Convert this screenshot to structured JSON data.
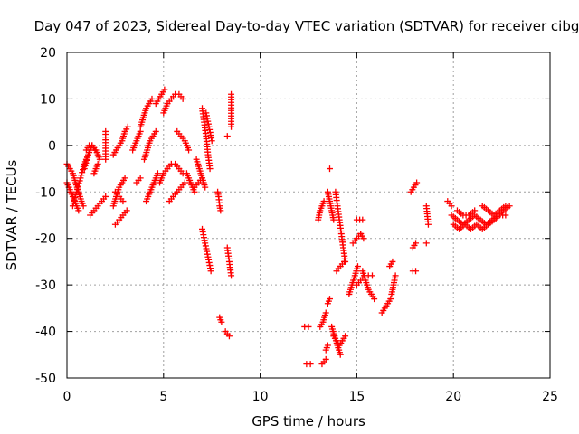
{
  "chart_data": {
    "type": "scatter",
    "title": "Day 047 of 2023, Sidereal Day-to-day VTEC variation (SDTVAR) for receiver cibg",
    "xlabel": "GPS time / hours",
    "ylabel": "SDTVAR / TECUs",
    "xlim": [
      0,
      25
    ],
    "ylim": [
      -50,
      20
    ],
    "xticks": [
      0,
      5,
      10,
      15,
      20,
      25
    ],
    "yticks": [
      -50,
      -40,
      -30,
      -20,
      -10,
      0,
      10,
      20
    ],
    "grid": true,
    "marker": "plus",
    "color": "#ff0000",
    "segments": [
      {
        "x": [
          0.0,
          0.15,
          0.3,
          0.45,
          0.6,
          0.75,
          0.85
        ],
        "y": [
          -4,
          -5,
          -6,
          -8,
          -10,
          -12,
          -13
        ]
      },
      {
        "x": [
          0.0,
          0.1,
          0.2,
          0.3,
          0.4,
          0.5,
          0.6
        ],
        "y": [
          -8,
          -9,
          -10,
          -11,
          -12,
          -13,
          -14
        ]
      },
      {
        "x": [
          0.3,
          0.5,
          0.7,
          0.9,
          1.1
        ],
        "y": [
          -13,
          -10,
          -7,
          -4,
          -2
        ]
      },
      {
        "x": [
          0.9,
          1.1,
          1.3,
          1.5,
          1.7
        ],
        "y": [
          -5,
          -2,
          0,
          -1,
          -3
        ]
      },
      {
        "x": [
          1.0,
          1.15,
          1.3,
          1.45
        ],
        "y": [
          -1,
          0,
          0,
          -1
        ]
      },
      {
        "x": [
          1.2,
          1.4,
          1.6,
          1.8,
          2.0
        ],
        "y": [
          -15,
          -14,
          -13,
          -12,
          -11
        ]
      },
      {
        "x": [
          1.4,
          1.6
        ],
        "y": [
          -6,
          -4
        ]
      },
      {
        "x": [
          2.0,
          2.0
        ],
        "y": [
          3,
          -3
        ]
      },
      {
        "x": [
          2.4,
          2.55,
          2.7,
          2.85,
          3.0,
          3.15
        ],
        "y": [
          -2,
          -1,
          0,
          1,
          3,
          4
        ]
      },
      {
        "x": [
          2.4,
          2.55,
          2.7,
          2.85,
          3.0
        ],
        "y": [
          -13,
          -11,
          -9,
          -8,
          -7
        ]
      },
      {
        "x": [
          2.5,
          2.7,
          2.9,
          3.1
        ],
        "y": [
          -17,
          -16,
          -15,
          -14
        ]
      },
      {
        "x": [
          2.5,
          2.7,
          2.9
        ],
        "y": [
          -10,
          -11,
          -12
        ]
      },
      {
        "x": [
          3.4,
          3.6,
          3.8
        ],
        "y": [
          -1,
          1,
          3
        ]
      },
      {
        "x": [
          3.6,
          3.8
        ],
        "y": [
          -8,
          -7
        ]
      },
      {
        "x": [
          3.8,
          3.95,
          4.1,
          4.25,
          4.4
        ],
        "y": [
          4,
          6,
          8,
          9,
          10
        ]
      },
      {
        "x": [
          4.0,
          4.15,
          4.3,
          4.45,
          4.6
        ],
        "y": [
          -3,
          -1,
          1,
          2,
          3
        ]
      },
      {
        "x": [
          4.1,
          4.3,
          4.5,
          4.7
        ],
        "y": [
          -12,
          -10,
          -8,
          -6
        ]
      },
      {
        "x": [
          4.6,
          4.75,
          4.9,
          5.05
        ],
        "y": [
          9,
          10,
          11,
          12
        ]
      },
      {
        "x": [
          4.8,
          5.0,
          5.2,
          5.4,
          5.6,
          5.8,
          6.0
        ],
        "y": [
          -8,
          -6,
          -5,
          -4,
          -4,
          -5,
          -6
        ]
      },
      {
        "x": [
          5.0,
          5.2,
          5.4,
          5.6,
          5.8,
          6.0
        ],
        "y": [
          7,
          9,
          10,
          11,
          11,
          10
        ]
      },
      {
        "x": [
          5.3,
          5.5,
          5.7,
          5.9,
          6.1
        ],
        "y": [
          -12,
          -11,
          -10,
          -9,
          -8
        ]
      },
      {
        "x": [
          5.7,
          5.9,
          6.1,
          6.3
        ],
        "y": [
          3,
          2,
          1,
          -1
        ]
      },
      {
        "x": [
          6.2,
          6.4,
          6.6
        ],
        "y": [
          -6,
          -8,
          -10
        ]
      },
      {
        "x": [
          6.6,
          6.8,
          7.0
        ],
        "y": [
          -9,
          -8,
          -7
        ]
      },
      {
        "x": [
          6.7,
          6.85,
          7.0,
          7.15
        ],
        "y": [
          -3,
          -5,
          -7,
          -9
        ]
      },
      {
        "x": [
          7.0,
          7.1,
          7.2,
          7.3,
          7.4
        ],
        "y": [
          8,
          5,
          2,
          -2,
          -5
        ]
      },
      {
        "x": [
          7.2,
          7.35,
          7.5
        ],
        "y": [
          7,
          4,
          1
        ]
      },
      {
        "x": [
          7.0,
          7.15,
          7.3,
          7.45
        ],
        "y": [
          -18,
          -21,
          -24,
          -27
        ]
      },
      {
        "x": [
          7.8,
          7.85,
          7.9,
          7.95
        ],
        "y": [
          -10,
          -11,
          -13,
          -14
        ]
      },
      {
        "x": [
          7.9,
          8.0
        ],
        "y": [
          -37,
          -38
        ]
      },
      {
        "x": [
          8.2,
          8.4
        ],
        "y": [
          -40,
          -41
        ]
      },
      {
        "x": [
          8.5,
          8.5
        ],
        "y": [
          11,
          4
        ]
      },
      {
        "x": [
          8.3,
          8.5
        ],
        "y": [
          -22,
          -28
        ]
      },
      {
        "x": [
          8.3
        ],
        "y": [
          2
        ]
      },
      {
        "x": [
          12.4,
          12.6
        ],
        "y": [
          -47,
          -47
        ]
      },
      {
        "x": [
          12.3,
          12.5
        ],
        "y": [
          -39,
          -39
        ]
      },
      {
        "x": [
          13.0,
          13.1,
          13.2,
          13.3
        ],
        "y": [
          -16,
          -14,
          -13,
          -12
        ]
      },
      {
        "x": [
          13.1,
          13.25,
          13.4
        ],
        "y": [
          -39,
          -38,
          -36
        ]
      },
      {
        "x": [
          13.2,
          13.4
        ],
        "y": [
          -47,
          -46
        ]
      },
      {
        "x": [
          13.4,
          13.5
        ],
        "y": [
          -44,
          -43
        ]
      },
      {
        "x": [
          13.5,
          13.6
        ],
        "y": [
          -34,
          -33
        ]
      },
      {
        "x": [
          13.6
        ],
        "y": [
          -5
        ]
      },
      {
        "x": [
          13.5,
          13.6,
          13.7,
          13.8
        ],
        "y": [
          -10,
          -12,
          -14,
          -16
        ]
      },
      {
        "x": [
          13.7,
          13.85,
          14.0,
          14.15
        ],
        "y": [
          -39,
          -41,
          -43,
          -45
        ]
      },
      {
        "x": [
          13.8,
          13.95,
          14.1,
          14.25,
          14.4
        ],
        "y": [
          -41,
          -42,
          -43,
          -42,
          -41
        ]
      },
      {
        "x": [
          13.9,
          14.0,
          14.1,
          14.2,
          14.3,
          14.4
        ],
        "y": [
          -10,
          -13,
          -16,
          -19,
          -22,
          -25
        ]
      },
      {
        "x": [
          13.95,
          14.15,
          14.35
        ],
        "y": [
          -27,
          -26,
          -25
        ]
      },
      {
        "x": [
          14.6,
          14.75,
          14.9,
          15.05
        ],
        "y": [
          -32,
          -30,
          -28,
          -26
        ]
      },
      {
        "x": [
          14.8,
          15.0,
          15.2
        ],
        "y": [
          -21,
          -20,
          -19
        ]
      },
      {
        "x": [
          15.0,
          15.15,
          15.3
        ],
        "y": [
          -16,
          -16,
          -16
        ]
      },
      {
        "x": [
          15.0,
          15.2,
          15.4,
          15.6,
          15.8
        ],
        "y": [
          -30,
          -29,
          -28,
          -28,
          -28
        ]
      },
      {
        "x": [
          15.3,
          15.45,
          15.6,
          15.75,
          15.9
        ],
        "y": [
          -27,
          -29,
          -31,
          -32,
          -33
        ]
      },
      {
        "x": [
          15.2,
          15.35
        ],
        "y": [
          -19,
          -20
        ]
      },
      {
        "x": [
          16.3,
          16.45,
          16.6,
          16.75
        ],
        "y": [
          -36,
          -35,
          -34,
          -33
        ]
      },
      {
        "x": [
          16.7,
          16.85
        ],
        "y": [
          -26,
          -25
        ]
      },
      {
        "x": [
          16.8,
          16.9,
          17.0
        ],
        "y": [
          -32,
          -30,
          -28
        ]
      },
      {
        "x": [
          17.8,
          17.95,
          18.1
        ],
        "y": [
          -10,
          -9,
          -8
        ]
      },
      {
        "x": [
          17.9,
          18.05
        ],
        "y": [
          -22,
          -21
        ]
      },
      {
        "x": [
          17.9,
          18.05
        ],
        "y": [
          -27,
          -27
        ]
      },
      {
        "x": [
          18.6,
          18.7
        ],
        "y": [
          -13,
          -17
        ]
      },
      {
        "x": [
          18.6
        ],
        "y": [
          -21
        ]
      },
      {
        "x": [
          19.7,
          19.9
        ],
        "y": [
          -12,
          -13
        ]
      },
      {
        "x": [
          19.9,
          20.2,
          20.5,
          20.8,
          21.1,
          21.4,
          21.7,
          22.0,
          22.3,
          22.6,
          22.9
        ],
        "y": [
          -15,
          -16,
          -17,
          -16,
          -15,
          -16,
          -17,
          -16,
          -15,
          -14,
          -13
        ]
      },
      {
        "x": [
          20.0,
          20.3,
          20.6,
          20.9,
          21.2,
          21.5,
          21.8,
          22.1,
          22.4,
          22.7
        ],
        "y": [
          -17,
          -18,
          -17,
          -18,
          -17,
          -18,
          -17,
          -16,
          -15,
          -15
        ]
      },
      {
        "x": [
          20.2,
          20.5,
          20.8,
          21.1
        ],
        "y": [
          -14,
          -15,
          -15,
          -14
        ]
      },
      {
        "x": [
          21.5,
          21.8,
          22.1,
          22.4,
          22.7
        ],
        "y": [
          -13,
          -14,
          -15,
          -14,
          -13
        ]
      }
    ]
  }
}
